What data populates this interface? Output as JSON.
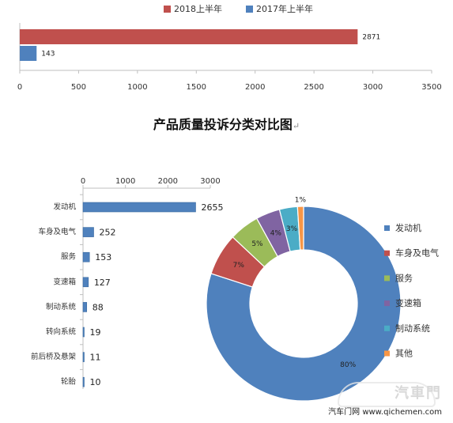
{
  "chart_data": [
    {
      "type": "bar",
      "orientation": "horizontal",
      "series": [
        {
          "name": "2018上半年",
          "values": [
            2871
          ],
          "color": "#c0504d"
        },
        {
          "name": "2017年上半年",
          "values": [
            143
          ],
          "color": "#4f81bd"
        }
      ],
      "data_labels": [
        "2871",
        "143"
      ],
      "xticks": [
        "0",
        "500",
        "1000",
        "1500",
        "2000",
        "2500",
        "3000",
        "3500"
      ],
      "xlim": [
        0,
        3500
      ],
      "legend": "top",
      "grid": false
    },
    {
      "type": "bar",
      "orientation": "horizontal",
      "categories": [
        "发动机",
        "车身及电气",
        "服务",
        "变速箱",
        "制动系统",
        "转向系统",
        "前后桥及悬架",
        "轮胎"
      ],
      "values": [
        2655,
        252,
        153,
        127,
        88,
        19,
        11,
        10
      ],
      "data_labels": [
        "2655",
        "252",
        "153",
        "127",
        "88",
        "19",
        "11",
        "10"
      ],
      "xticks": [
        "0",
        "1000",
        "2000",
        "3000"
      ],
      "xlim": [
        0,
        3000
      ],
      "color": "#4f81bd",
      "grid": false
    },
    {
      "type": "pie",
      "style": "donut",
      "slices": [
        {
          "label": "发动机",
          "value": 80,
          "text": "80%",
          "color": "#4f81bd"
        },
        {
          "label": "车身及电气",
          "value": 7,
          "text": "7%",
          "color": "#c0504d"
        },
        {
          "label": "服务",
          "value": 5,
          "text": "5%",
          "color": "#9bbb59"
        },
        {
          "label": "变速箱",
          "value": 4,
          "text": "4%",
          "color": "#8064a2"
        },
        {
          "label": "制动系统",
          "value": 3,
          "text": "3%",
          "color": "#4bacc6"
        },
        {
          "label": "其他",
          "value": 1,
          "text": "1%",
          "color": "#f79646"
        }
      ],
      "legend": "right"
    }
  ],
  "page": {
    "title": "产品质量投诉分类对比图",
    "watermark_brand": "汽車門",
    "watermark_text": "汽车门网 www.qichemen.com"
  }
}
